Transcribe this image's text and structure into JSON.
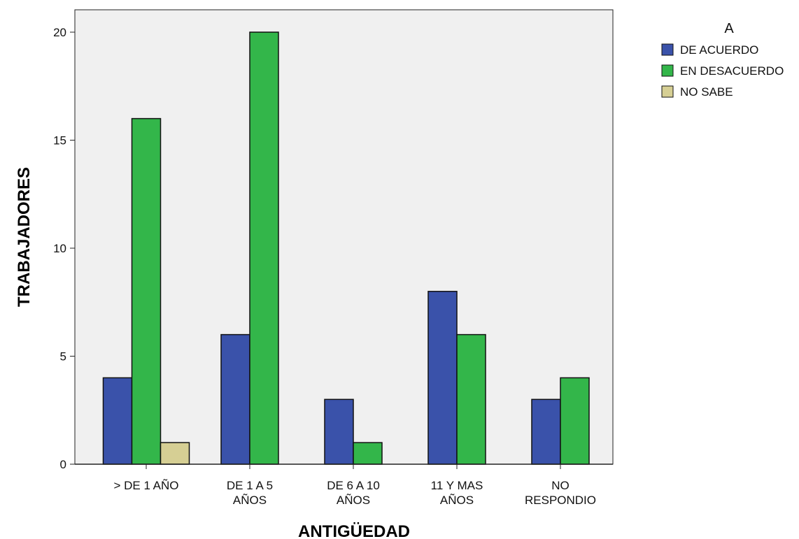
{
  "chart_data": {
    "type": "bar",
    "title": "",
    "xlabel": "ANTIGÜEDAD",
    "ylabel": "TRABAJADORES",
    "categories": [
      [
        "> DE 1 AÑO"
      ],
      [
        "DE 1  A 5",
        "AÑOS"
      ],
      [
        "DE 6  A 10",
        "AÑOS"
      ],
      [
        "11  Y MAS",
        "AÑOS"
      ],
      [
        "NO",
        "RESPONDIO"
      ]
    ],
    "series": [
      {
        "name": "DE ACUERDO",
        "color": "#3a52aa",
        "values": [
          4,
          6,
          3,
          8,
          3
        ]
      },
      {
        "name": "EN DESACUERDO",
        "color": "#33b64a",
        "values": [
          16,
          20,
          1,
          6,
          4
        ]
      },
      {
        "name": "NO SABE",
        "color": "#d6cf94",
        "values": [
          1,
          0,
          0,
          0,
          0
        ]
      }
    ],
    "ylim": [
      0,
      20
    ],
    "yticks": [
      0,
      5,
      10,
      15,
      20
    ],
    "grid": false,
    "legend": {
      "title": "A",
      "position": "top-right"
    }
  }
}
